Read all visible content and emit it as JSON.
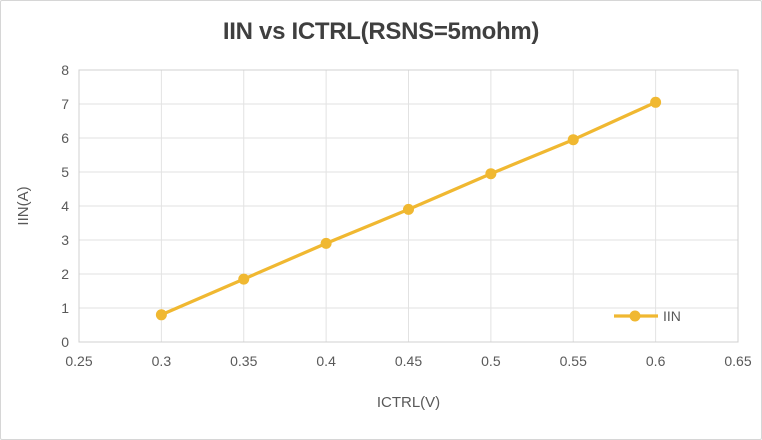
{
  "chart": {
    "colors": {
      "series_gold": "#F0B831",
      "title_text": "#3F3F3F",
      "axis_text": "#595959",
      "gridline": "#E2E2E2",
      "plot_border": "#D0D0D0",
      "canvas_border": "#D6D6D6",
      "background": "#FFFFFF"
    }
  },
  "chart_data": {
    "type": "line",
    "title": "IIN vs ICTRL(RSNS=5mohm)",
    "xlabel": "ICTRL(V)",
    "ylabel": "IIN(A)",
    "x": [
      0.3,
      0.35,
      0.4,
      0.45,
      0.5,
      0.55,
      0.6
    ],
    "series": [
      {
        "name": "IIN",
        "values": [
          0.8,
          1.85,
          2.9,
          3.9,
          4.95,
          5.95,
          7.05
        ]
      }
    ],
    "xlim": [
      0.25,
      0.65
    ],
    "ylim": [
      0,
      8
    ],
    "x_ticks": [
      0.25,
      0.3,
      0.35,
      0.4,
      0.45,
      0.5,
      0.55,
      0.6,
      0.65
    ],
    "y_ticks": [
      0,
      1,
      2,
      3,
      4,
      5,
      6,
      7,
      8
    ],
    "grid": true,
    "marker": "circle",
    "legend_position": "inside-bottom-right",
    "legend_entries": [
      "IIN"
    ]
  }
}
